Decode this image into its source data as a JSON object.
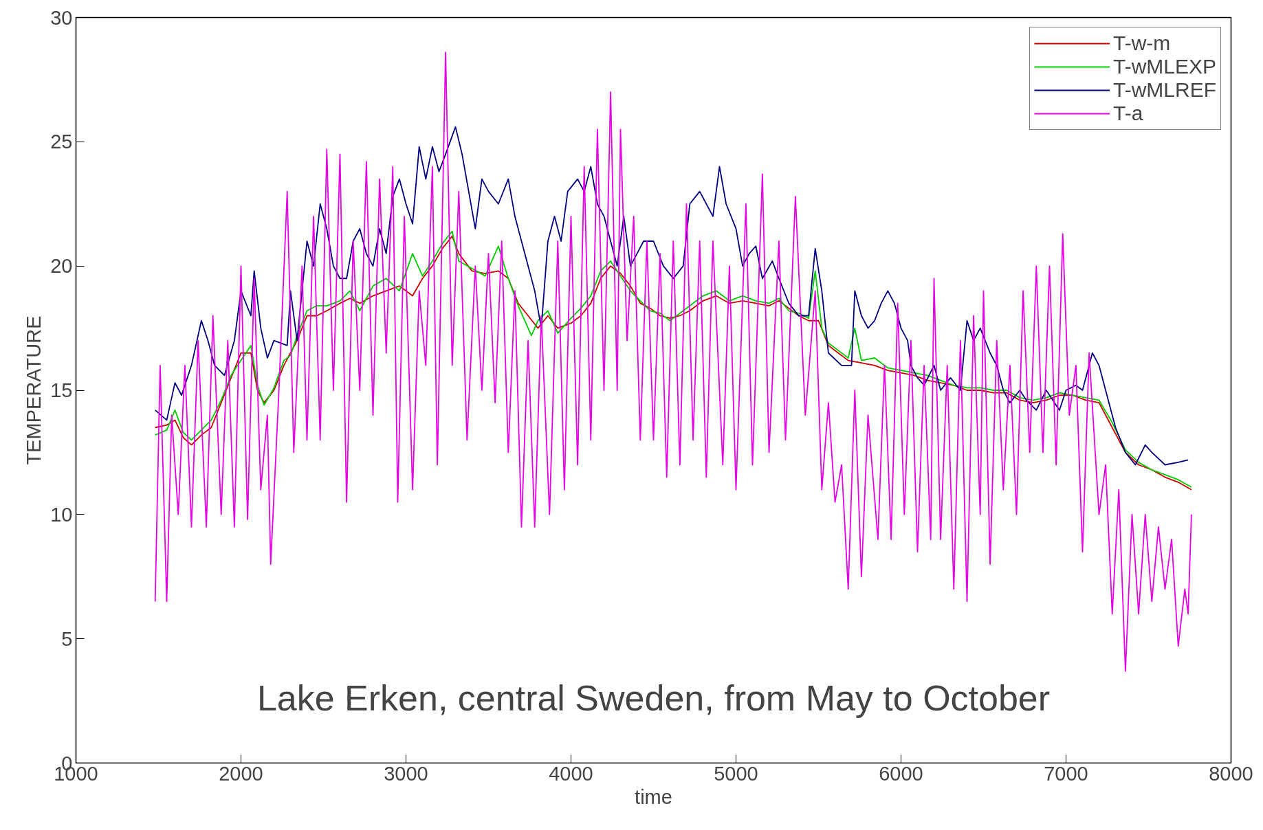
{
  "chart_data": {
    "type": "line",
    "xlabel": "time",
    "ylabel": "TEMPERATURE",
    "xlim": [
      1000,
      8000
    ],
    "ylim": [
      0,
      30
    ],
    "xticks": [
      1000,
      2000,
      3000,
      4000,
      5000,
      6000,
      7000,
      8000
    ],
    "yticks": [
      0,
      5,
      10,
      15,
      20,
      25,
      30
    ],
    "grid": false,
    "legend": "top right",
    "marker": "none",
    "line_style": "solid",
    "annotations": [
      "Lake Erken, central Sweden, from May to October"
    ],
    "series": [
      {
        "name": "T-w-m",
        "color": "#cc0000",
        "x": [
          1480,
          1550,
          1600,
          1650,
          1700,
          1760,
          1820,
          1880,
          1940,
          2000,
          2060,
          2100,
          2140,
          2200,
          2260,
          2300,
          2340,
          2400,
          2460,
          2520,
          2600,
          2660,
          2720,
          2800,
          2880,
          2960,
          3040,
          3100,
          3160,
          3220,
          3280,
          3320,
          3400,
          3480,
          3560,
          3620,
          3680,
          3740,
          3800,
          3860,
          3920,
          4000,
          4060,
          4120,
          4180,
          4240,
          4300,
          4360,
          4420,
          4480,
          4540,
          4600,
          4660,
          4720,
          4800,
          4880,
          4960,
          5040,
          5120,
          5200,
          5260,
          5320,
          5380,
          5440,
          5500,
          5560,
          5620,
          5680,
          5760,
          5840,
          5920,
          6000,
          6080,
          6160,
          6240,
          6320,
          6400,
          6480,
          6560,
          6640,
          6720,
          6800,
          6880,
          6960,
          7040,
          7120,
          7200,
          7280,
          7360,
          7440,
          7520,
          7600,
          7680,
          7760
        ],
        "values": [
          13.5,
          13.6,
          13.8,
          13.1,
          12.8,
          13.2,
          13.5,
          14.5,
          15.5,
          16.5,
          16.5,
          15,
          14.5,
          15,
          16,
          16.5,
          17,
          18,
          18,
          18.2,
          18.5,
          18.7,
          18.5,
          18.8,
          19,
          19.2,
          18.8,
          19.5,
          20,
          20.7,
          21.2,
          20.5,
          19.8,
          19.7,
          19.8,
          19.5,
          18.5,
          18,
          17.5,
          18,
          17.5,
          17.7,
          18,
          18.5,
          19.5,
          20,
          19.7,
          19.2,
          18.5,
          18.3,
          18,
          17.9,
          18,
          18.2,
          18.6,
          18.8,
          18.5,
          18.6,
          18.5,
          18.4,
          18.6,
          18.3,
          18,
          17.8,
          17.8,
          16.8,
          16.5,
          16.2,
          16.1,
          16,
          15.8,
          15.7,
          15.6,
          15.4,
          15.3,
          15.2,
          15,
          15,
          14.9,
          14.9,
          14.6,
          14.5,
          14.6,
          14.8,
          14.8,
          14.6,
          14.5,
          13.5,
          12.5,
          12,
          11.8,
          11.5,
          11.3,
          11
        ]
      },
      {
        "name": "T-wMLEXP",
        "color": "#00cc00",
        "x": [
          1480,
          1550,
          1600,
          1650,
          1700,
          1760,
          1820,
          1880,
          1940,
          2000,
          2060,
          2100,
          2140,
          2200,
          2260,
          2300,
          2340,
          2400,
          2460,
          2520,
          2600,
          2660,
          2720,
          2800,
          2880,
          2960,
          3040,
          3100,
          3160,
          3220,
          3280,
          3320,
          3400,
          3480,
          3560,
          3620,
          3680,
          3760,
          3800,
          3860,
          3920,
          4000,
          4060,
          4120,
          4180,
          4240,
          4300,
          4360,
          4420,
          4480,
          4540,
          4600,
          4660,
          4720,
          4800,
          4880,
          4960,
          5040,
          5120,
          5200,
          5260,
          5320,
          5380,
          5440,
          5480,
          5520,
          5560,
          5620,
          5680,
          5720,
          5760,
          5840,
          5920,
          6000,
          6080,
          6160,
          6240,
          6320,
          6400,
          6480,
          6560,
          6640,
          6720,
          6800,
          6880,
          6960,
          7040,
          7120,
          7200,
          7280,
          7360,
          7440,
          7520,
          7600,
          7680,
          7760
        ],
        "values": [
          13.2,
          13.4,
          14.2,
          13.3,
          13,
          13.4,
          13.8,
          14.6,
          15.6,
          16.2,
          16.8,
          15.2,
          14.4,
          15.1,
          16.2,
          16.4,
          17.2,
          18.2,
          18.4,
          18.4,
          18.6,
          19,
          18.2,
          19.2,
          19.5,
          19,
          20.5,
          19.6,
          20.2,
          20.9,
          21.4,
          20.2,
          19.9,
          19.6,
          20.8,
          19.5,
          18.4,
          17.2,
          17.8,
          18.2,
          17.3,
          17.9,
          18.3,
          18.8,
          19.8,
          20.2,
          19.6,
          19,
          18.6,
          18.2,
          18.1,
          17.8,
          18.1,
          18.4,
          18.8,
          19,
          18.6,
          18.8,
          18.6,
          18.5,
          18.7,
          18.2,
          18.1,
          17.9,
          19.8,
          17.5,
          16.9,
          16.6,
          16.3,
          17.5,
          16.2,
          16.3,
          15.9,
          15.8,
          15.7,
          15.6,
          15.4,
          15.2,
          15.1,
          15.1,
          15,
          15,
          14.7,
          14.6,
          14.7,
          14.9,
          14.8,
          14.7,
          14.6,
          13.7,
          12.6,
          12.1,
          11.8,
          11.6,
          11.4,
          11.1
        ]
      },
      {
        "name": "T-wMLREF",
        "color": "#000080",
        "x": [
          1480,
          1550,
          1600,
          1640,
          1700,
          1760,
          1800,
          1840,
          1900,
          1960,
          2000,
          2060,
          2080,
          2120,
          2160,
          2200,
          2280,
          2300,
          2340,
          2400,
          2440,
          2480,
          2520,
          2560,
          2600,
          2640,
          2680,
          2720,
          2760,
          2800,
          2840,
          2880,
          2920,
          2960,
          3000,
          3040,
          3080,
          3120,
          3160,
          3200,
          3240,
          3300,
          3340,
          3380,
          3420,
          3460,
          3500,
          3560,
          3620,
          3660,
          3720,
          3780,
          3820,
          3860,
          3900,
          3940,
          3980,
          4040,
          4080,
          4120,
          4160,
          4200,
          4240,
          4280,
          4320,
          4360,
          4400,
          4440,
          4500,
          4560,
          4620,
          4680,
          4720,
          4780,
          4820,
          4860,
          4900,
          4940,
          5000,
          5040,
          5080,
          5120,
          5160,
          5220,
          5260,
          5320,
          5380,
          5440,
          5480,
          5520,
          5560,
          5640,
          5700,
          5720,
          5760,
          5800,
          5840,
          5880,
          5920,
          5960,
          6000,
          6040,
          6060,
          6100,
          6140,
          6200,
          6240,
          6300,
          6360,
          6400,
          6440,
          6480,
          6540,
          6580,
          6620,
          6660,
          6720,
          6760,
          6820,
          6880,
          6920,
          6960,
          7000,
          7060,
          7100,
          7160,
          7200,
          7240,
          7300,
          7360,
          7420,
          7480,
          7520,
          7600,
          7680,
          7740
        ],
        "values": [
          14.2,
          13.8,
          15.3,
          14.8,
          16,
          17.8,
          17,
          16,
          15.6,
          17,
          19,
          18,
          19.8,
          17.5,
          16.3,
          17,
          16.8,
          19,
          17,
          21,
          20,
          22.5,
          21.5,
          20,
          19.5,
          19.5,
          21,
          21.5,
          20.5,
          20,
          21.5,
          20.5,
          22.8,
          23.5,
          22.5,
          21.7,
          24.8,
          23.5,
          24.8,
          23.8,
          24.5,
          25.6,
          24.5,
          23,
          21.5,
          23.5,
          23,
          22.5,
          23.5,
          22,
          20.5,
          19,
          17.5,
          21,
          22,
          21,
          23,
          23.5,
          23,
          24,
          22.5,
          22,
          21,
          20,
          22,
          20,
          20.5,
          21,
          21,
          20,
          19.5,
          20,
          22.5,
          23,
          22.5,
          22,
          24,
          22.5,
          21.5,
          20,
          20.5,
          20.8,
          19.5,
          20.2,
          19.5,
          18.5,
          18,
          18,
          20.7,
          19,
          16.5,
          16,
          16,
          19,
          18,
          17.5,
          17.8,
          18.5,
          19,
          18.5,
          17.5,
          17,
          16,
          15.5,
          15.2,
          16,
          15,
          15.5,
          15,
          17.8,
          17,
          17.5,
          16.5,
          16,
          15,
          14.5,
          15,
          14.6,
          14.2,
          15,
          14.6,
          14.2,
          15,
          15.2,
          15,
          16.5,
          16,
          15,
          13.5,
          12.5,
          12,
          12.8,
          12.5,
          12,
          12.1,
          12.2
        ]
      },
      {
        "name": "T-a",
        "color": "#e600e6",
        "x": [
          1480,
          1510,
          1550,
          1580,
          1620,
          1660,
          1700,
          1740,
          1790,
          1830,
          1880,
          1920,
          1960,
          2000,
          2040,
          2080,
          2120,
          2160,
          2180,
          2230,
          2280,
          2320,
          2370,
          2400,
          2440,
          2480,
          2520,
          2560,
          2600,
          2640,
          2680,
          2720,
          2760,
          2800,
          2840,
          2880,
          2920,
          2950,
          2990,
          3040,
          3080,
          3120,
          3160,
          3190,
          3240,
          3280,
          3320,
          3370,
          3420,
          3460,
          3500,
          3540,
          3580,
          3620,
          3660,
          3700,
          3740,
          3780,
          3820,
          3870,
          3920,
          3960,
          4000,
          4040,
          4080,
          4120,
          4160,
          4200,
          4240,
          4280,
          4300,
          4340,
          4380,
          4420,
          4460,
          4500,
          4540,
          4580,
          4620,
          4660,
          4700,
          4740,
          4780,
          4820,
          4860,
          4920,
          4960,
          5000,
          5060,
          5100,
          5160,
          5200,
          5260,
          5300,
          5360,
          5420,
          5480,
          5520,
          5560,
          5600,
          5640,
          5680,
          5720,
          5760,
          5800,
          5860,
          5900,
          5940,
          5980,
          6020,
          6060,
          6100,
          6140,
          6180,
          6200,
          6240,
          6280,
          6320,
          6360,
          6400,
          6440,
          6480,
          6500,
          6540,
          6580,
          6620,
          6660,
          6700,
          6740,
          6780,
          6820,
          6860,
          6900,
          6940,
          6980,
          7020,
          7060,
          7100,
          7140,
          7200,
          7240,
          7280,
          7320,
          7360,
          7400,
          7440,
          7480,
          7520,
          7560,
          7600,
          7640,
          7680,
          7720,
          7740,
          7760
        ],
        "values": [
          6.5,
          16,
          6.5,
          14,
          10,
          16,
          9.5,
          17,
          9.5,
          18,
          10,
          17,
          9.5,
          20,
          9.8,
          19.5,
          11,
          14,
          8,
          15,
          23,
          12.5,
          20,
          13,
          22,
          13,
          24.7,
          15,
          24.5,
          10.5,
          21,
          15,
          24.2,
          14,
          23.5,
          16.5,
          24,
          10.5,
          22,
          11,
          19,
          16,
          24,
          12,
          28.6,
          16,
          23,
          13,
          20,
          15,
          20.5,
          14.5,
          21,
          12.5,
          19,
          9.5,
          17,
          9.5,
          18,
          10,
          21,
          11,
          22,
          12,
          24,
          13,
          25.5,
          15,
          27,
          15,
          25.5,
          17,
          22,
          13,
          21,
          13,
          20.5,
          11.5,
          21,
          12,
          22.5,
          13,
          21,
          11.5,
          21,
          12,
          20,
          11,
          22.5,
          12,
          23.7,
          12.5,
          21,
          13,
          22.8,
          14,
          19,
          11,
          14.5,
          10.5,
          12,
          7,
          15,
          7.5,
          14,
          9,
          16,
          9,
          18.5,
          10,
          17,
          8.5,
          16,
          9,
          19.5,
          9,
          16,
          7,
          17,
          6.5,
          18,
          10,
          19,
          8,
          17,
          11,
          16,
          10,
          19,
          12.5,
          20,
          12.5,
          20,
          12,
          21.3,
          14,
          16,
          8.5,
          16.5,
          10,
          12,
          6,
          11,
          3.7,
          10,
          6,
          10,
          6.5,
          9.5,
          7,
          9,
          4.7,
          7,
          6,
          10
        ]
      }
    ]
  }
}
